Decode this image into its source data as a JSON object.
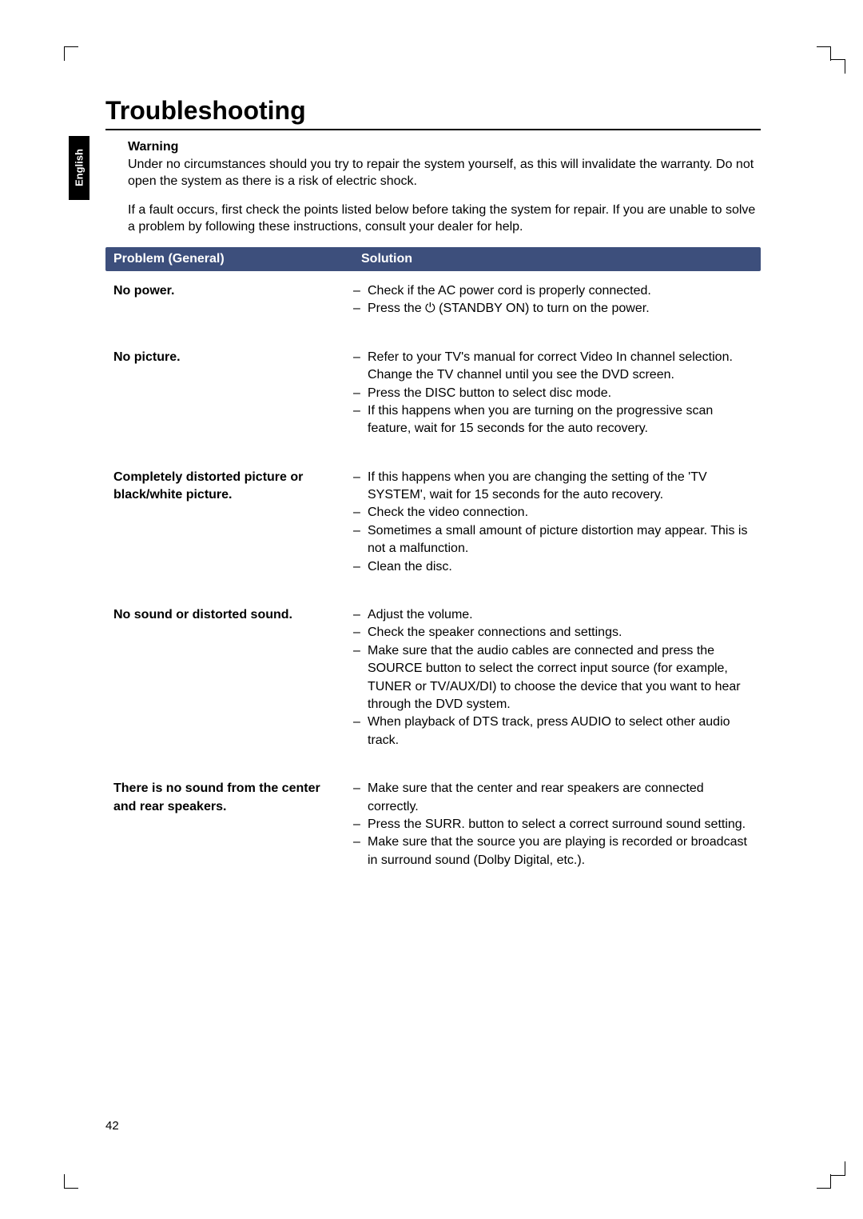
{
  "page": {
    "title": "Troubleshooting",
    "language_tab": "English",
    "page_number": "42"
  },
  "warning": {
    "heading": "Warning",
    "p1": "Under no circumstances should you try to repair the system yourself, as this will invalidate the warranty. Do not open the system as there is a risk of electric shock.",
    "p2": "If a fault occurs, first check the points listed below before taking the system for repair. If you are unable to solve a problem by following these instructions, consult your dealer for help."
  },
  "table": {
    "header_problem": "Problem (General)",
    "header_solution": "Solution",
    "header_bg": "#3d4f7c",
    "header_fg": "#ffffff",
    "rows": [
      {
        "problem": "No power.",
        "solutions": [
          "Check if the AC power cord is properly connected.",
          "Press the ⏻ (STANDBY ON) to turn on the power."
        ]
      },
      {
        "problem": "No picture.",
        "solutions": [
          "Refer to your TV's manual for correct Video In channel selection. Change the TV channel until you see the DVD screen.",
          "Press the DISC button to select disc mode.",
          "If this happens when you are turning on the progressive scan feature, wait for 15 seconds for the auto recovery."
        ]
      },
      {
        "problem": "Completely distorted picture or black/white picture.",
        "solutions": [
          "If this happens when you are changing the setting of the 'TV SYSTEM', wait for 15 seconds for the auto recovery.",
          "Check the video connection.",
          "Sometimes a small amount of picture distortion may appear. This is not a malfunction.",
          "Clean the disc."
        ]
      },
      {
        "problem": "No sound or distorted sound.",
        "solutions": [
          "Adjust the volume.",
          "Check the speaker connections and settings.",
          "Make sure that the audio cables are connected and press the SOURCE button to select the correct input source (for example, TUNER or TV/AUX/DI) to choose the device that you want to hear through the DVD system.",
          "When playback of DTS track, press AUDIO to select other audio track."
        ]
      },
      {
        "problem": "There is no sound from the center and rear speakers.",
        "solutions": [
          "Make sure that the center and rear speakers are connected correctly.",
          "Press the SURR. button to select a correct surround sound setting.",
          "Make sure that the source you are playing is recorded or broadcast in surround sound (Dolby Digital, etc.)."
        ]
      }
    ]
  }
}
